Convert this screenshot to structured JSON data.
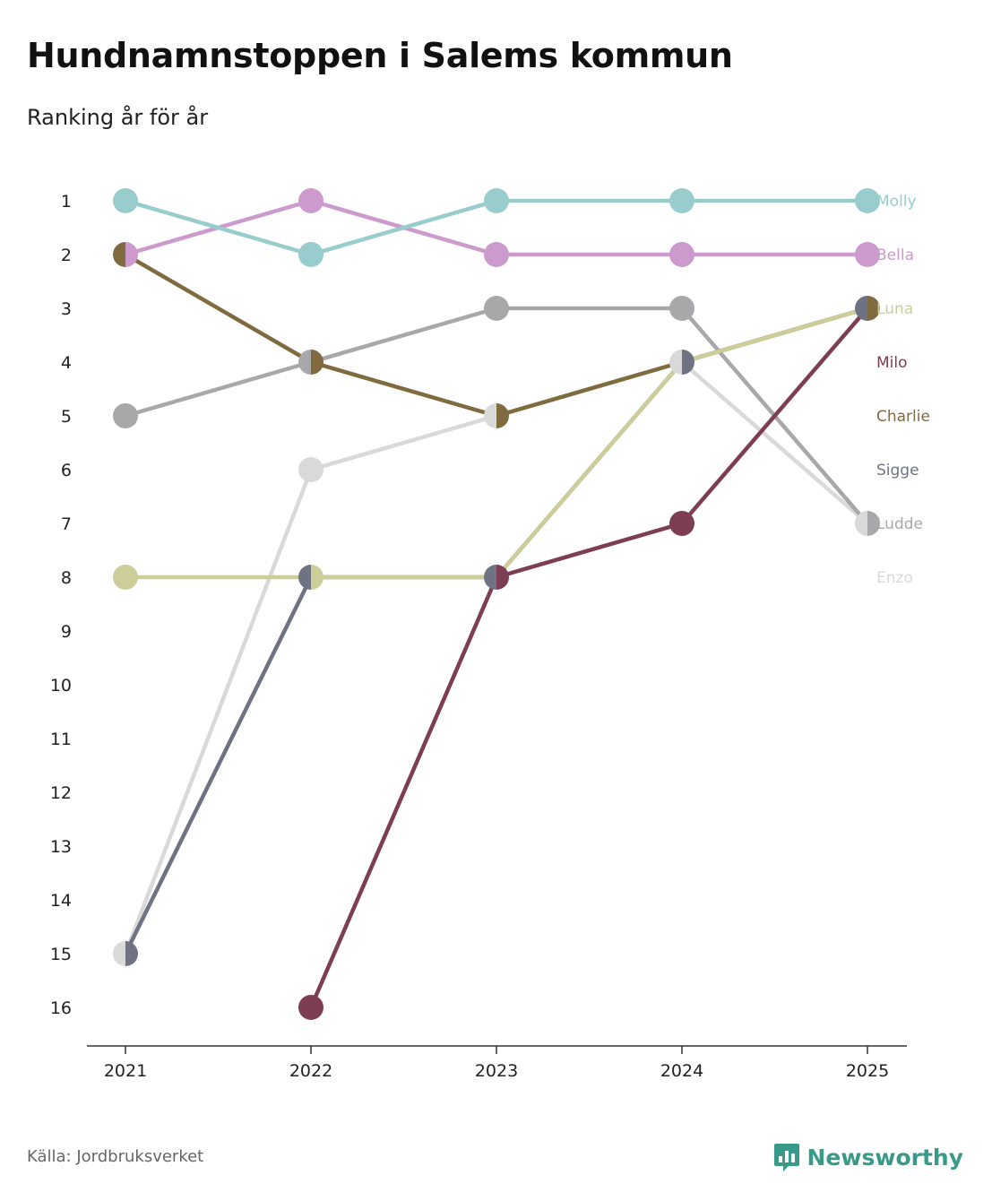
{
  "title": "Hundnamnstoppen i Salems kommun",
  "subtitle": "Ranking år för år",
  "source": "Källa: Jordbruksverket",
  "brand": {
    "name": "Newsworthy",
    "icon": "newsworthy-logo-icon",
    "color": "#3a9a8a"
  },
  "chart_data": {
    "type": "line",
    "chart_kind": "bump",
    "x": [
      "2021",
      "2022",
      "2023",
      "2024",
      "2025"
    ],
    "y_ticks": [
      "1",
      "2",
      "3",
      "4",
      "5",
      "6",
      "7",
      "8",
      "9",
      "10",
      "11",
      "12",
      "13",
      "14",
      "15",
      "16"
    ],
    "ylim": [
      1,
      16
    ],
    "y_inverted": true,
    "series": [
      {
        "name": "Enzo",
        "color": "#d9d9d9",
        "values": [
          15,
          6,
          5,
          4,
          7
        ]
      },
      {
        "name": "Ludde",
        "color": "#a8a8aa",
        "values": [
          5,
          4,
          3,
          3,
          7
        ]
      },
      {
        "name": "Sigge",
        "color": "#6f7282",
        "values": [
          15,
          8,
          8,
          4,
          3
        ]
      },
      {
        "name": "Charlie",
        "color": "#806b40",
        "values": [
          2,
          4,
          5,
          4,
          3
        ]
      },
      {
        "name": "Milo",
        "color": "#7d3d52",
        "values": [
          null,
          16,
          8,
          7,
          3
        ]
      },
      {
        "name": "Luna",
        "color": "#cdcd99",
        "values": [
          8,
          8,
          8,
          4,
          3
        ]
      },
      {
        "name": "Bella",
        "color": "#cc9acc",
        "values": [
          2,
          1,
          2,
          2,
          2
        ]
      },
      {
        "name": "Molly",
        "color": "#99cccc",
        "values": [
          1,
          2,
          1,
          1,
          1
        ]
      }
    ],
    "label_order": [
      "Molly",
      "Bella",
      "Luna",
      "Milo",
      "Charlie",
      "Sigge",
      "Ludde",
      "Enzo"
    ],
    "title": "Hundnamnstoppen i Salems kommun",
    "subtitle": "Ranking år för år",
    "xlabel": "",
    "ylabel": ""
  }
}
